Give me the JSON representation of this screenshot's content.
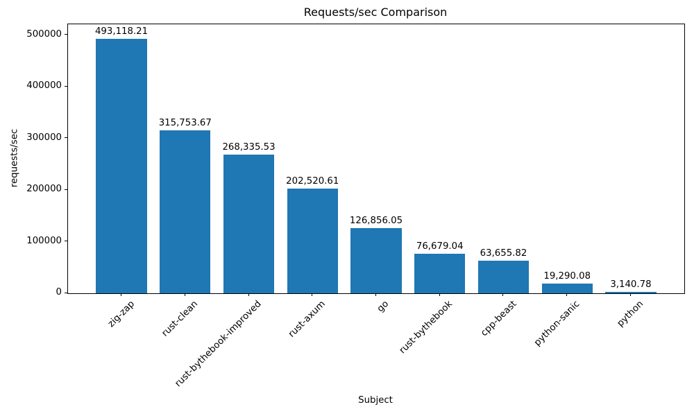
{
  "chart_data": {
    "type": "bar",
    "title": "Requests/sec Comparison",
    "xlabel": "Subject",
    "ylabel": "requests/sec",
    "categories": [
      "zig-zap",
      "rust-clean",
      "rust-bythebook-improved",
      "rust-axum",
      "go",
      "rust-bythebook",
      "cpp-beast",
      "python-sanic",
      "python"
    ],
    "values": [
      493118.21,
      315753.67,
      268335.53,
      202520.61,
      126856.05,
      76679.04,
      63655.82,
      19290.08,
      3140.78
    ],
    "value_labels": [
      "493,118.21",
      "315,753.67",
      "268,335.53",
      "202,520.61",
      "126,856.05",
      "76,679.04",
      "63,655.82",
      "19,290.08",
      "3,140.78"
    ],
    "y_ticks": [
      0,
      100000,
      200000,
      300000,
      400000,
      500000
    ],
    "y_tick_labels": [
      "0",
      "100000",
      "200000",
      "300000",
      "400000",
      "500000"
    ],
    "ylim": [
      0,
      521000
    ],
    "bar_color": "#1f77b4",
    "text_color": "#000000",
    "spine_color": "#000000",
    "background_color": "#ffffff",
    "grid": false,
    "legend_position": "none",
    "bar_width_fraction": 0.8,
    "x_margin_fraction": 0.05,
    "x_tick_rotation_deg": 45
  }
}
